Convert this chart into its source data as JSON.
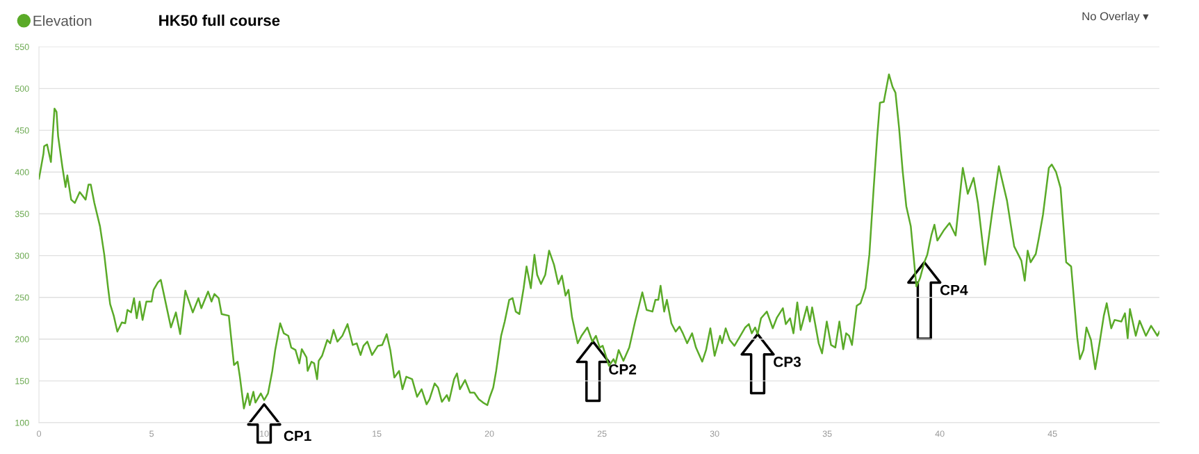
{
  "chart_data": {
    "type": "line",
    "title": "HK50 full course",
    "series": [
      {
        "name": "Elevation",
        "color": "#5aaa28",
        "x": [
          0,
          0.2,
          0.23,
          0.36,
          0.53,
          0.69,
          0.78,
          0.85,
          1.04,
          1.18,
          1.26,
          1.43,
          1.59,
          1.81,
          2.07,
          2.2,
          2.3,
          2.46,
          2.71,
          2.9,
          3.07,
          3.16,
          3.32,
          3.48,
          3.68,
          3.83,
          3.93,
          4.09,
          4.22,
          4.34,
          4.47,
          4.6,
          4.77,
          5.0,
          5.09,
          5.28,
          5.41,
          5.67,
          5.86,
          6.08,
          6.27,
          6.5,
          6.83,
          7.08,
          7.21,
          7.51,
          7.66,
          7.79,
          7.98,
          8.11,
          8.43,
          8.66,
          8.82,
          8.92,
          9.1,
          9.27,
          9.36,
          9.52,
          9.61,
          9.85,
          10.0,
          10.17,
          10.36,
          10.49,
          10.71,
          10.87,
          11.07,
          11.2,
          11.39,
          11.56,
          11.67,
          11.88,
          11.93,
          12.1,
          12.22,
          12.35,
          12.42,
          12.57,
          12.8,
          12.93,
          13.08,
          13.25,
          13.47,
          13.7,
          13.93,
          14.11,
          14.28,
          14.41,
          14.58,
          14.79,
          15.05,
          15.24,
          15.44,
          15.6,
          15.78,
          15.99,
          16.14,
          16.31,
          16.57,
          16.79,
          16.99,
          17.21,
          17.34,
          17.57,
          17.72,
          17.89,
          18.11,
          18.21,
          18.43,
          18.56,
          18.69,
          18.92,
          19.14,
          19.33,
          19.53,
          19.72,
          19.91,
          20.02,
          20.17,
          20.3,
          20.52,
          20.68,
          20.88,
          21.03,
          21.17,
          21.33,
          21.52,
          21.65,
          21.84,
          22.0,
          22.12,
          22.29,
          22.48,
          22.65,
          22.87,
          23.06,
          23.22,
          23.38,
          23.51,
          23.67,
          23.92,
          24.09,
          24.35,
          24.57,
          24.73,
          24.9,
          25.03,
          25.31,
          25.51,
          25.6,
          25.74,
          25.95,
          26.21,
          26.47,
          26.79,
          26.98,
          27.24,
          27.37,
          27.5,
          27.6,
          27.76,
          27.88,
          28.08,
          28.27,
          28.44,
          28.59,
          28.78,
          29.0,
          29.17,
          29.45,
          29.62,
          29.81,
          30.0,
          30.24,
          30.33,
          30.49,
          30.67,
          30.88,
          31.1,
          31.36,
          31.52,
          31.65,
          31.8,
          31.91,
          32.06,
          32.32,
          32.58,
          32.77,
          33.03,
          33.16,
          33.35,
          33.5,
          33.67,
          33.82,
          34.1,
          34.23,
          34.33,
          34.46,
          34.62,
          34.77,
          34.98,
          35.17,
          35.36,
          35.54,
          35.71,
          35.84,
          35.97,
          36.1,
          36.31,
          36.48,
          36.7,
          36.87,
          37.06,
          37.22,
          37.34,
          37.51,
          37.74,
          37.9,
          38.03,
          38.19,
          38.35,
          38.51,
          38.71,
          38.96,
          39.12,
          39.31,
          39.44,
          39.63,
          39.76,
          39.89,
          40.17,
          40.43,
          40.7,
          41.02,
          41.24,
          41.5,
          41.69,
          42.01,
          42.33,
          42.62,
          42.98,
          43.3,
          43.62,
          43.77,
          43.9,
          44.03,
          44.26,
          44.39,
          44.58,
          44.84,
          44.97,
          45.16,
          45.36,
          45.61,
          45.83,
          46.1,
          46.22,
          46.38,
          46.51,
          46.71,
          46.9,
          47.09,
          47.28,
          47.41,
          47.61,
          47.76,
          48.06,
          48.22,
          48.34,
          48.44,
          48.7,
          48.87,
          49.15,
          49.38,
          49.66,
          49.75
        ],
        "values": [
          392,
          422,
          431,
          433,
          412,
          476,
          472,
          443,
          406,
          382,
          396,
          367,
          363,
          376,
          367,
          385,
          385,
          363,
          335,
          301,
          261,
          242,
          228,
          209,
          220,
          219,
          235,
          232,
          249,
          225,
          245,
          223,
          245,
          245,
          259,
          268,
          271,
          238,
          214,
          232,
          206,
          258,
          232,
          249,
          237,
          257,
          245,
          254,
          249,
          230,
          228,
          169,
          173,
          155,
          117,
          135,
          121,
          137,
          124,
          135,
          127,
          135,
          162,
          187,
          219,
          207,
          204,
          190,
          187,
          171,
          188,
          178,
          162,
          173,
          171,
          152,
          174,
          180,
          199,
          195,
          211,
          197,
          204,
          218,
          193,
          195,
          181,
          192,
          197,
          181,
          192,
          193,
          206,
          187,
          154,
          162,
          140,
          155,
          152,
          131,
          140,
          122,
          128,
          147,
          142,
          125,
          133,
          126,
          152,
          159,
          140,
          151,
          136,
          136,
          128,
          124,
          121,
          131,
          142,
          162,
          204,
          221,
          247,
          249,
          233,
          230,
          261,
          287,
          261,
          301,
          277,
          266,
          277,
          306,
          289,
          266,
          276,
          252,
          259,
          226,
          195,
          204,
          214,
          197,
          204,
          190,
          192,
          168,
          176,
          171,
          187,
          174,
          190,
          221,
          256,
          235,
          233,
          247,
          247,
          264,
          233,
          247,
          219,
          209,
          215,
          207,
          195,
          207,
          190,
          173,
          187,
          213,
          180,
          204,
          195,
          213,
          199,
          192,
          202,
          214,
          218,
          207,
          214,
          206,
          225,
          233,
          213,
          226,
          237,
          218,
          225,
          207,
          244,
          211,
          239,
          221,
          238,
          219,
          195,
          183,
          221,
          193,
          190,
          221,
          188,
          207,
          204,
          193,
          240,
          243,
          261,
          301,
          380,
          443,
          483,
          484,
          517,
          502,
          495,
          453,
          401,
          359,
          335,
          263,
          273,
          292,
          301,
          325,
          337,
          318,
          330,
          339,
          324,
          405,
          374,
          393,
          363,
          289,
          353,
          407,
          366,
          311,
          294,
          270,
          306,
          292,
          302,
          320,
          349,
          405,
          409,
          400,
          381,
          292,
          287,
          202,
          176,
          187,
          214,
          199,
          164,
          195,
          228,
          243,
          213,
          223,
          221,
          231,
          201,
          236,
          204,
          222,
          204,
          216,
          204,
          209
        ]
      }
    ],
    "xlim": [
      0,
      49.75
    ],
    "xticks": [
      0,
      5,
      10,
      15,
      20,
      25,
      30,
      35,
      40,
      45
    ],
    "ylim": [
      100,
      550
    ],
    "yticks": [
      100,
      150,
      200,
      250,
      300,
      350,
      400,
      450,
      500,
      550
    ],
    "grid": "y",
    "legend": "top left",
    "marker": "none",
    "line_style": "solid",
    "annotations": [
      {
        "text": "CP1",
        "x": 10.0,
        "y": 122
      },
      {
        "text": "CP2",
        "x": 24.6,
        "y": 197
      },
      {
        "text": "CP3",
        "x": 31.91,
        "y": 206
      },
      {
        "text": "CP4",
        "x": 39.31,
        "y": 292
      },
      "No Overlay ▾"
    ]
  }
}
